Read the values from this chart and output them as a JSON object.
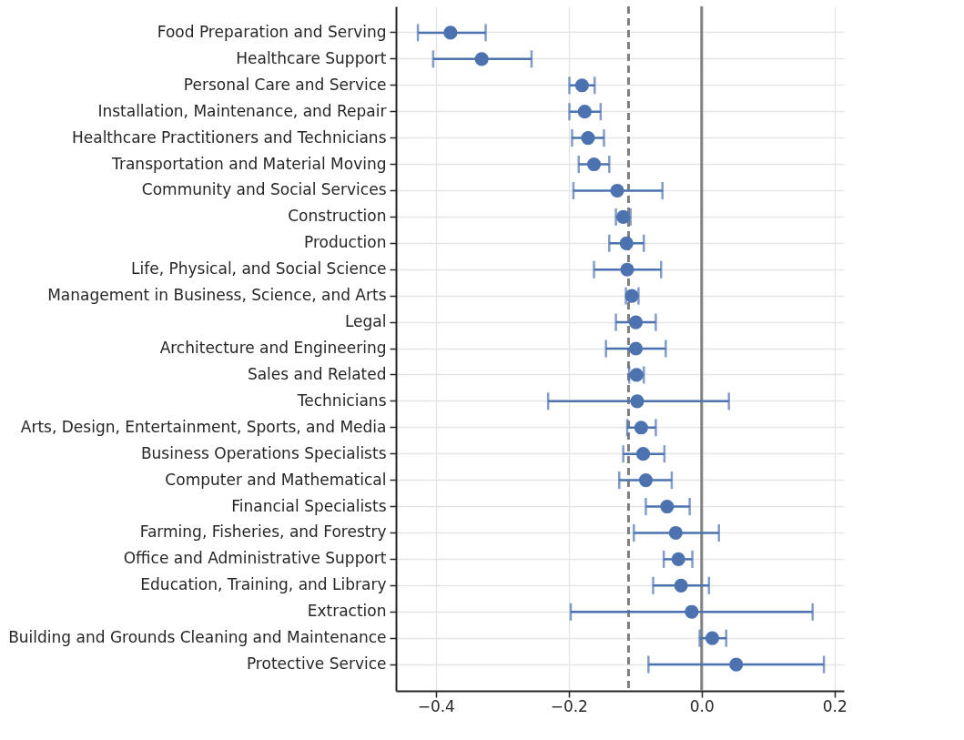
{
  "chart_data": {
    "type": "scatter",
    "orientation": "horizontal",
    "marker": "circle",
    "grid": true,
    "categories": [
      "Food Preparation and Serving",
      "Healthcare Support",
      "Personal Care and Service",
      "Installation, Maintenance, and Repair",
      "Healthcare Practitioners and Technicians",
      "Transportation and Material Moving",
      "Community and Social Services",
      "Construction",
      "Production",
      "Life, Physical, and Social Science",
      "Management in Business, Science, and Arts",
      "Legal",
      "Architecture and Engineering",
      "Sales and Related",
      "Technicians",
      "Arts, Design, Entertainment, Sports, and Media",
      "Business Operations Specialists",
      "Computer and Mathematical",
      "Financial Specialists",
      "Farming, Fisheries, and Forestry",
      "Office and Administrative Support",
      "Education, Training, and Library",
      "Extraction",
      "Building and Grounds Cleaning and Maintenance",
      "Protective Service"
    ],
    "series": [
      {
        "color": "#4c72b0",
        "values": [
          -0.378,
          -0.331,
          -0.18,
          -0.176,
          -0.171,
          -0.162,
          -0.127,
          -0.118,
          -0.113,
          -0.112,
          -0.105,
          -0.099,
          -0.099,
          -0.098,
          -0.097,
          -0.091,
          -0.088,
          -0.084,
          -0.052,
          -0.039,
          -0.035,
          -0.031,
          -0.015,
          0.016,
          0.052
        ],
        "errors": [
          [
            -0.427,
            -0.325
          ],
          [
            -0.404,
            -0.256
          ],
          [
            -0.199,
            -0.161
          ],
          [
            -0.199,
            -0.152
          ],
          [
            -0.195,
            -0.147
          ],
          [
            -0.185,
            -0.139
          ],
          [
            -0.193,
            -0.059
          ],
          [
            -0.129,
            -0.107
          ],
          [
            -0.139,
            -0.087
          ],
          [
            -0.162,
            -0.061
          ],
          [
            -0.114,
            -0.095
          ],
          [
            -0.129,
            -0.069
          ],
          [
            -0.144,
            -0.054
          ],
          [
            -0.109,
            -0.087
          ],
          [
            -0.231,
            0.041
          ],
          [
            -0.112,
            -0.069
          ],
          [
            -0.118,
            -0.056
          ],
          [
            -0.124,
            -0.045
          ],
          [
            -0.084,
            -0.018
          ],
          [
            -0.102,
            0.026
          ],
          [
            -0.057,
            -0.014
          ],
          [
            -0.073,
            0.011
          ],
          [
            -0.197,
            0.167
          ],
          [
            -0.003,
            0.037
          ],
          [
            -0.08,
            0.184
          ]
        ]
      }
    ],
    "xlim": [
      -0.46,
      0.214
    ],
    "xticks": [
      -0.4,
      -0.2,
      {
        "value": 0,
        "label": "0.0"
      },
      0.2
    ],
    "ref_lines": [
      {
        "axis": "x",
        "value": -0.11,
        "color": "#808080",
        "line_style": "dashed"
      },
      {
        "axis": "x",
        "value": 0,
        "color": "#808080",
        "line_style": "solid"
      }
    ]
  }
}
